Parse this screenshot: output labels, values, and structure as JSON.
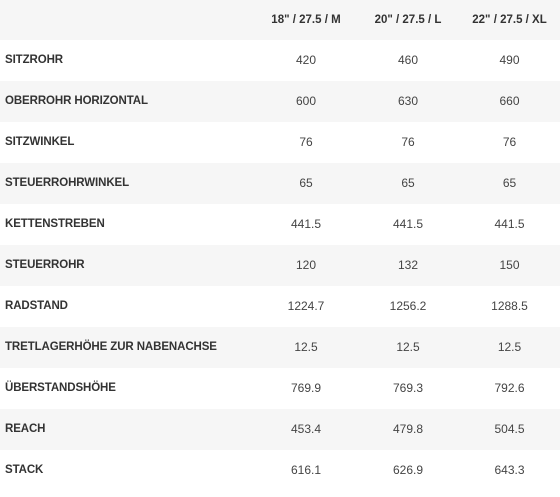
{
  "table": {
    "columns": [
      "",
      "18\" / 27.5 / M",
      "20\" / 27.5 / L",
      "22\" / 27.5 / XL"
    ],
    "rows": [
      {
        "label": "SITZROHR",
        "values": [
          "420",
          "460",
          "490"
        ]
      },
      {
        "label": "OBERROHR HORIZONTAL",
        "values": [
          "600",
          "630",
          "660"
        ]
      },
      {
        "label": "SITZWINKEL",
        "values": [
          "76",
          "76",
          "76"
        ]
      },
      {
        "label": "STEUERROHRWINKEL",
        "values": [
          "65",
          "65",
          "65"
        ]
      },
      {
        "label": "KETTENSTREBEN",
        "values": [
          "441.5",
          "441.5",
          "441.5"
        ]
      },
      {
        "label": "STEUERROHR",
        "values": [
          "120",
          "132",
          "150"
        ]
      },
      {
        "label": "RADSTAND",
        "values": [
          "1224.7",
          "1256.2",
          "1288.5"
        ]
      },
      {
        "label": "TRETLAGERHÖHE ZUR NABENACHSE",
        "values": [
          "12.5",
          "12.5",
          "12.5"
        ]
      },
      {
        "label": "ÜBERSTANDSHÖHE",
        "values": [
          "769.9",
          "769.3",
          "792.6"
        ]
      },
      {
        "label": "REACH",
        "values": [
          "453.4",
          "479.8",
          "504.5"
        ]
      },
      {
        "label": "STACK",
        "values": [
          "616.1",
          "626.9",
          "643.3"
        ]
      }
    ]
  }
}
